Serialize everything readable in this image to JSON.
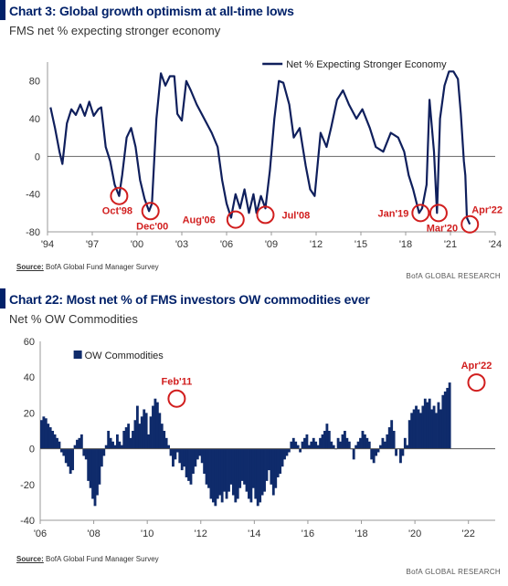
{
  "chart_data": [
    {
      "type": "line",
      "title": "Chart 3: Global growth optimism at all-time lows",
      "subtitle": "FMS net % expecting stronger economy",
      "ylim": [
        -80,
        100
      ],
      "yticks": [
        80,
        40,
        0,
        -40,
        -80
      ],
      "xlim": [
        1994,
        2024
      ],
      "xticks": [
        {
          "v": 1994,
          "label": "'94"
        },
        {
          "v": 1997,
          "label": "'97"
        },
        {
          "v": 2000,
          "label": "'00"
        },
        {
          "v": 2003,
          "label": "'03"
        },
        {
          "v": 2006,
          "label": "'06"
        },
        {
          "v": 2009,
          "label": "'09"
        },
        {
          "v": 2012,
          "label": "'12"
        },
        {
          "v": 2015,
          "label": "'15"
        },
        {
          "v": 2018,
          "label": "'18"
        },
        {
          "v": 2021,
          "label": "'21"
        },
        {
          "v": 2024,
          "label": "'24"
        }
      ],
      "grid": false,
      "legend": "top-right",
      "color": "#0f1f5c",
      "series": [
        {
          "name": "Net % Expecting Stronger Economy",
          "points": [
            [
              1994.2,
              52
            ],
            [
              1994.5,
              30
            ],
            [
              1994.8,
              5
            ],
            [
              1995.0,
              -8
            ],
            [
              1995.3,
              35
            ],
            [
              1995.6,
              50
            ],
            [
              1995.9,
              44
            ],
            [
              1996.2,
              55
            ],
            [
              1996.5,
              43
            ],
            [
              1996.8,
              58
            ],
            [
              1997.1,
              43
            ],
            [
              1997.4,
              50
            ],
            [
              1997.6,
              52
            ],
            [
              1997.9,
              10
            ],
            [
              1998.2,
              -5
            ],
            [
              1998.5,
              -30
            ],
            [
              1998.8,
              -42
            ],
            [
              1999.0,
              -20
            ],
            [
              1999.3,
              20
            ],
            [
              1999.6,
              30
            ],
            [
              1999.9,
              10
            ],
            [
              2000.2,
              -25
            ],
            [
              2000.5,
              -45
            ],
            [
              2000.8,
              -58
            ],
            [
              2001.0,
              -50
            ],
            [
              2001.3,
              40
            ],
            [
              2001.6,
              88
            ],
            [
              2001.9,
              75
            ],
            [
              2002.2,
              85
            ],
            [
              2002.5,
              85
            ],
            [
              2002.7,
              45
            ],
            [
              2003.0,
              38
            ],
            [
              2003.3,
              80
            ],
            [
              2003.6,
              70
            ],
            [
              2004.0,
              55
            ],
            [
              2004.5,
              40
            ],
            [
              2005.0,
              25
            ],
            [
              2005.4,
              10
            ],
            [
              2005.7,
              -25
            ],
            [
              2006.0,
              -50
            ],
            [
              2006.3,
              -65
            ],
            [
              2006.6,
              -40
            ],
            [
              2006.9,
              -55
            ],
            [
              2007.2,
              -35
            ],
            [
              2007.5,
              -60
            ],
            [
              2007.8,
              -40
            ],
            [
              2008.0,
              -60
            ],
            [
              2008.3,
              -42
            ],
            [
              2008.6,
              -55
            ],
            [
              2008.9,
              -15
            ],
            [
              2009.2,
              40
            ],
            [
              2009.5,
              80
            ],
            [
              2009.8,
              78
            ],
            [
              2010.2,
              55
            ],
            [
              2010.5,
              20
            ],
            [
              2010.9,
              30
            ],
            [
              2011.3,
              -10
            ],
            [
              2011.6,
              -35
            ],
            [
              2011.9,
              -42
            ],
            [
              2012.3,
              25
            ],
            [
              2012.7,
              10
            ],
            [
              2013.0,
              30
            ],
            [
              2013.4,
              60
            ],
            [
              2013.8,
              70
            ],
            [
              2014.2,
              55
            ],
            [
              2014.7,
              40
            ],
            [
              2015.1,
              50
            ],
            [
              2015.6,
              30
            ],
            [
              2016.0,
              10
            ],
            [
              2016.5,
              5
            ],
            [
              2017.0,
              25
            ],
            [
              2017.5,
              20
            ],
            [
              2017.9,
              5
            ],
            [
              2018.2,
              -20
            ],
            [
              2018.5,
              -35
            ],
            [
              2018.9,
              -60
            ],
            [
              2019.1,
              -55
            ],
            [
              2019.4,
              -30
            ],
            [
              2019.6,
              60
            ],
            [
              2019.9,
              5
            ],
            [
              2020.1,
              -60
            ],
            [
              2020.3,
              40
            ],
            [
              2020.6,
              75
            ],
            [
              2020.9,
              90
            ],
            [
              2021.2,
              90
            ],
            [
              2021.5,
              82
            ],
            [
              2021.7,
              45
            ],
            [
              2021.9,
              -5
            ],
            [
              2022.0,
              -20
            ],
            [
              2022.1,
              -65
            ],
            [
              2022.3,
              -72
            ]
          ]
        }
      ],
      "annotations": [
        {
          "label": "Oct'98",
          "x": 1998.8,
          "y": -42
        },
        {
          "label": "Dec'00",
          "x": 2000.9,
          "y": -58
        },
        {
          "label": "Aug'06",
          "x": 2006.6,
          "y": -67
        },
        {
          "label": "Jul'08",
          "x": 2008.6,
          "y": -62
        },
        {
          "label": "Jan'19",
          "x": 2019.0,
          "y": -60
        },
        {
          "label": "Mar'20",
          "x": 2020.2,
          "y": -60
        },
        {
          "label": "Apr'22",
          "x": 2022.3,
          "y": -72
        }
      ]
    },
    {
      "type": "bar",
      "title": "Chart 22: Most net % of FMS investors OW commodities ever",
      "subtitle": "Net % OW Commodities",
      "ylim": [
        -40,
        60
      ],
      "yticks": [
        60,
        40,
        20,
        0,
        -20,
        -40
      ],
      "xlim": [
        2006,
        2023
      ],
      "xticks": [
        {
          "v": 2006,
          "label": "'06"
        },
        {
          "v": 2008,
          "label": "'08"
        },
        {
          "v": 2010,
          "label": "'10"
        },
        {
          "v": 2012,
          "label": "'12"
        },
        {
          "v": 2014,
          "label": "'14"
        },
        {
          "v": 2016,
          "label": "'16"
        },
        {
          "v": 2018,
          "label": "'18"
        },
        {
          "v": 2020,
          "label": "'20"
        },
        {
          "v": 2022,
          "label": "'22"
        }
      ],
      "grid": false,
      "legend": "top-left",
      "color": "#0f2b6b",
      "series": [
        {
          "name": "OW Commodities",
          "monthly_values_from_2006_01": [
            16,
            18,
            17,
            14,
            12,
            10,
            8,
            6,
            4,
            -2,
            -4,
            -8,
            -10,
            -14,
            -12,
            2,
            5,
            6,
            8,
            -4,
            -6,
            -18,
            -22,
            -28,
            -32,
            -26,
            -20,
            -10,
            -4,
            2,
            10,
            6,
            4,
            2,
            8,
            4,
            2,
            10,
            12,
            14,
            6,
            10,
            16,
            24,
            14,
            18,
            22,
            20,
            8,
            18,
            24,
            28,
            26,
            20,
            14,
            10,
            6,
            2,
            -4,
            -10,
            -6,
            -2,
            -8,
            -12,
            -10,
            -16,
            -18,
            -20,
            -14,
            -10,
            -6,
            -4,
            -8,
            -14,
            -20,
            -22,
            -28,
            -30,
            -32,
            -28,
            -26,
            -30,
            -24,
            -28,
            -24,
            -20,
            -26,
            -30,
            -28,
            -22,
            -18,
            -20,
            -24,
            -28,
            -30,
            -22,
            -28,
            -32,
            -30,
            -26,
            -24,
            -18,
            -12,
            -20,
            -26,
            -22,
            -16,
            -14,
            -10,
            -6,
            -4,
            -2,
            4,
            6,
            4,
            2,
            -2,
            4,
            6,
            8,
            2,
            4,
            6,
            4,
            2,
            6,
            8,
            10,
            14,
            10,
            4,
            2,
            0,
            6,
            4,
            8,
            10,
            6,
            4,
            0,
            -6,
            2,
            4,
            6,
            10,
            8,
            6,
            4,
            -6,
            -8,
            -4,
            -2,
            2,
            6,
            4,
            8,
            12,
            16,
            10,
            -4,
            0,
            -8,
            -4,
            6,
            2,
            16,
            20,
            22,
            24,
            22,
            20,
            24,
            28,
            26,
            28,
            22,
            24,
            20,
            26,
            22,
            30,
            32,
            34,
            37
          ]
        }
      ],
      "annotations": [
        {
          "label": "Feb'11",
          "x": 2011.1,
          "y": 28
        },
        {
          "label": "Apr'22",
          "x": 2022.3,
          "y": 37
        }
      ]
    }
  ],
  "panels": [
    {
      "title": "Chart 3: Global growth optimism at all-time lows",
      "subtitle": "FMS net % expecting stronger economy",
      "source_label": "Source:",
      "source_text": " BofA Global Fund Manager Survey",
      "credit": "BofA GLOBAL RESEARCH"
    },
    {
      "title": "Chart 22: Most net % of FMS investors OW commodities ever",
      "subtitle": "Net % OW Commodities",
      "source_label": "Source:",
      "source_text": " BofA Global Fund Manager Survey",
      "credit": "BofA GLOBAL RESEARCH"
    }
  ],
  "colors": {
    "accent": "#012169",
    "annotation": "#d11e1e"
  }
}
